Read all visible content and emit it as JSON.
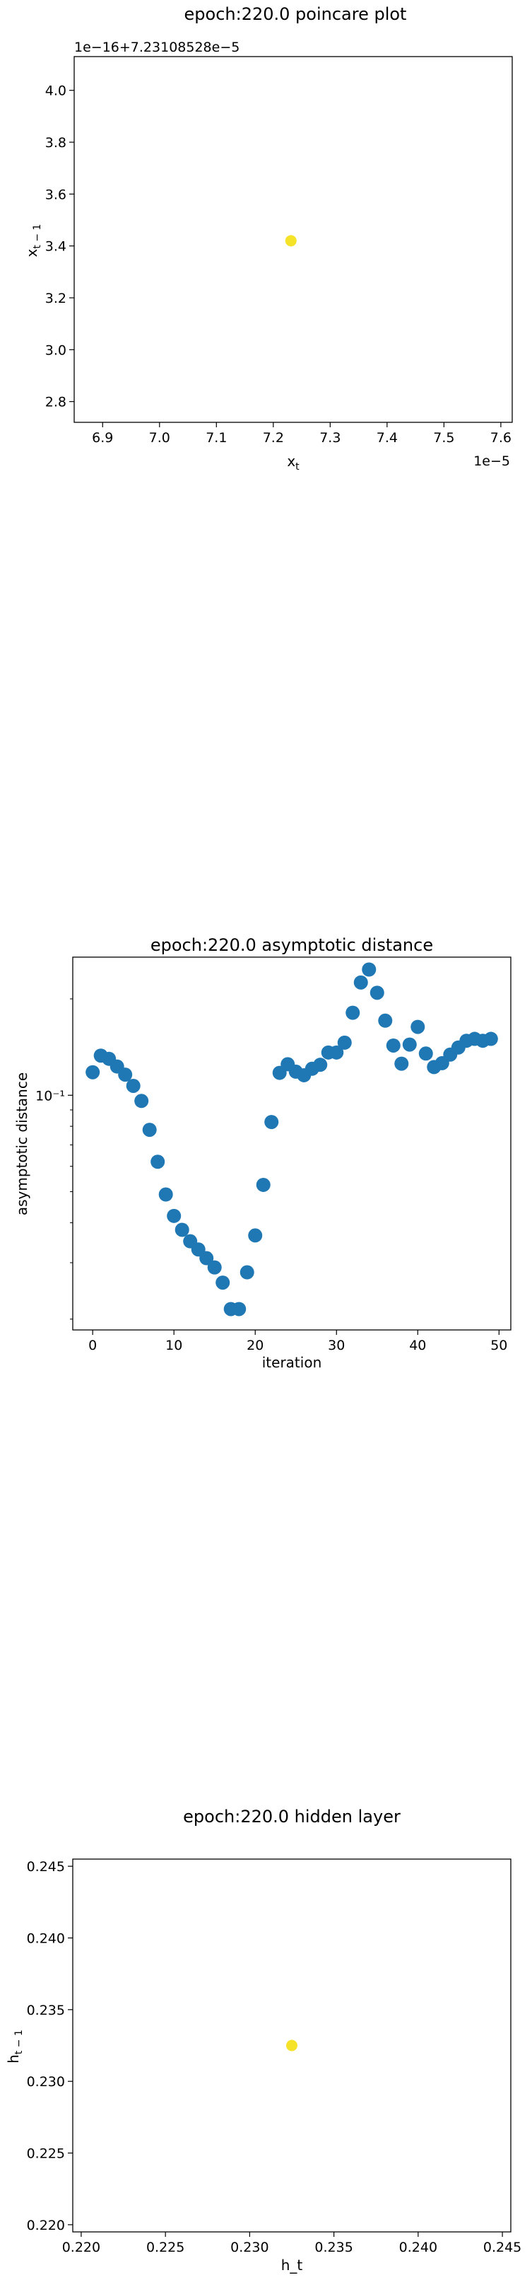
{
  "chart_data": [
    {
      "type": "scatter",
      "title": "epoch:220.0 poincare plot",
      "xlabel": "x_t",
      "ylabel": "x_{t-1}",
      "x_offset_text": "1e−5",
      "y_offset_text": "1e−16+7.23108528e−5",
      "xlim": [
        6.85,
        7.62
      ],
      "ylim": [
        2.72,
        4.13
      ],
      "x_ticks": [
        6.9,
        7.0,
        7.1,
        7.2,
        7.3,
        7.4,
        7.5,
        7.6
      ],
      "x_tick_labels": [
        "6.9",
        "7.0",
        "7.1",
        "7.2",
        "7.3",
        "7.4",
        "7.5",
        "7.6"
      ],
      "y_ticks": [
        2.8,
        3.0,
        3.2,
        3.4,
        3.6,
        3.8,
        4.0
      ],
      "y_tick_labels": [
        "2.8",
        "3.0",
        "3.2",
        "3.4",
        "3.6",
        "3.8",
        "4.0"
      ],
      "points": [
        {
          "x": 7.231,
          "y": 3.42
        }
      ],
      "point_color": "#f5e32a"
    },
    {
      "type": "scatter",
      "title": "epoch:220.0 asymptotic distance",
      "xlabel": "iteration",
      "ylabel": "asymptotic distance",
      "y_scale": "log",
      "xlim": [
        -2.45,
        51.45
      ],
      "ylim": [
        0.0185,
        0.27
      ],
      "x_ticks": [
        0,
        10,
        20,
        30,
        40,
        50
      ],
      "x_tick_labels": [
        "0",
        "10",
        "20",
        "30",
        "40",
        "50"
      ],
      "y_ticks": [
        0.1
      ],
      "y_tick_labels": [
        "10⁻¹"
      ],
      "y_minor_ticks": [
        0.02,
        0.03,
        0.04,
        0.05,
        0.06,
        0.07,
        0.08,
        0.09,
        0.2
      ],
      "x": [
        0,
        1,
        2,
        3,
        4,
        5,
        6,
        7,
        8,
        9,
        10,
        11,
        12,
        13,
        14,
        15,
        16,
        17,
        18,
        19,
        20,
        21,
        22,
        23,
        24,
        25,
        26,
        27,
        28,
        29,
        30,
        31,
        32,
        33,
        34,
        35,
        36,
        37,
        38,
        39,
        40,
        41,
        42,
        43,
        44,
        45,
        46,
        47,
        48,
        49
      ],
      "y": [
        0.118,
        0.133,
        0.13,
        0.123,
        0.116,
        0.107,
        0.096,
        0.078,
        0.062,
        0.049,
        0.042,
        0.038,
        0.035,
        0.033,
        0.031,
        0.029,
        0.026,
        0.0215,
        0.0215,
        0.028,
        0.0365,
        0.0525,
        0.0825,
        0.1175,
        0.125,
        0.1185,
        0.1155,
        0.121,
        0.1245,
        0.136,
        0.136,
        0.146,
        0.181,
        0.225,
        0.247,
        0.209,
        0.171,
        0.143,
        0.1255,
        0.144,
        0.1635,
        0.135,
        0.1225,
        0.126,
        0.134,
        0.141,
        0.148,
        0.15,
        0.148,
        0.15
      ],
      "point_color": "#1f77b4"
    },
    {
      "type": "scatter",
      "title": "epoch:220.0 hidden layer",
      "xlabel": "h_t",
      "ylabel": "h_{t-1}",
      "xlim": [
        0.2195,
        0.2455
      ],
      "ylim": [
        0.2195,
        0.2455
      ],
      "x_ticks": [
        0.22,
        0.225,
        0.23,
        0.235,
        0.24,
        0.245
      ],
      "x_tick_labels": [
        "0.220",
        "0.225",
        "0.230",
        "0.235",
        "0.240",
        "0.245"
      ],
      "y_ticks": [
        0.22,
        0.225,
        0.23,
        0.235,
        0.24,
        0.245
      ],
      "y_tick_labels": [
        "0.220",
        "0.225",
        "0.230",
        "0.235",
        "0.240",
        "0.245"
      ],
      "points": [
        {
          "x": 0.2325,
          "y": 0.2325
        }
      ],
      "point_color": "#f5e32a"
    }
  ]
}
